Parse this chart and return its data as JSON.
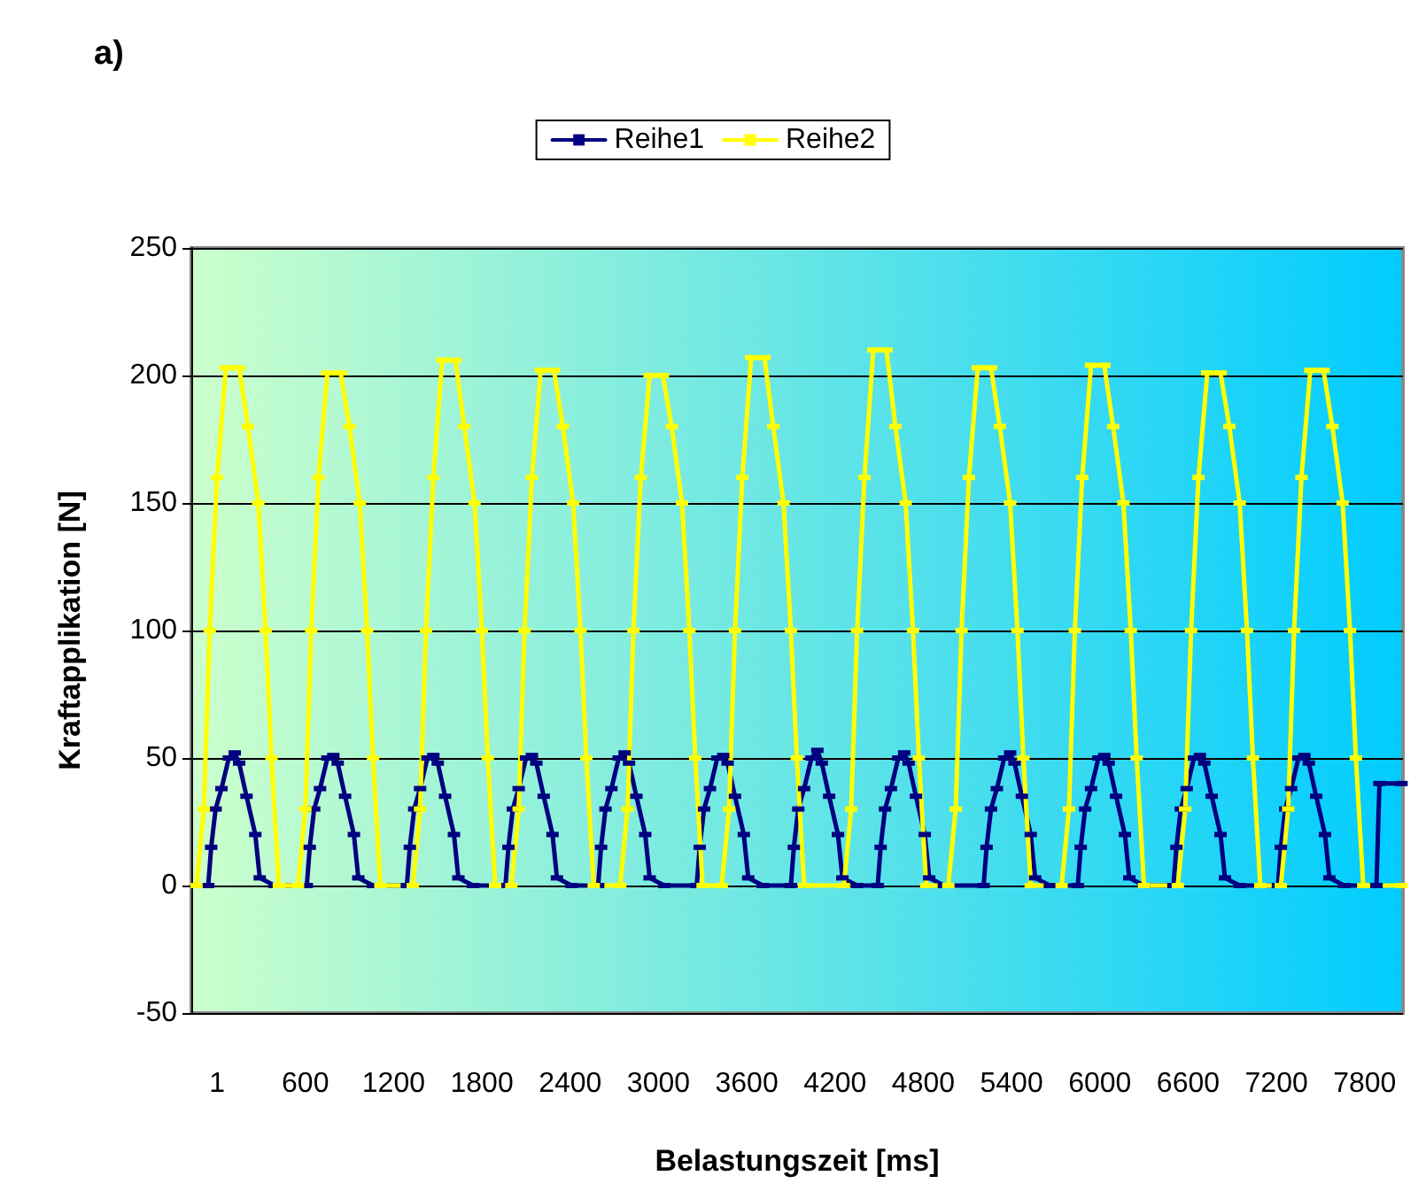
{
  "chart_data": {
    "type": "line",
    "title": "a)",
    "xlabel": "Belastungszeit [ms]",
    "ylabel": "Kraftapplikation [N]",
    "xlim": [
      -175,
      8060
    ],
    "xticks": [
      1,
      600,
      1200,
      1800,
      2400,
      3000,
      3600,
      4200,
      4800,
      5400,
      6000,
      6600,
      7200,
      7800
    ],
    "ylim": [
      -50,
      250
    ],
    "yticks": [
      -50,
      0,
      50,
      100,
      150,
      200,
      250
    ],
    "grid": "y",
    "legend": "top",
    "marker": "square",
    "line_style": "solid",
    "series": [
      {
        "name": "Reihe1",
        "color": "#000080",
        "x": [
          -60,
          -40,
          -10,
          30,
          80,
          120,
          150,
          200,
          260,
          290,
          390,
          610,
          630,
          660,
          700,
          750,
          790,
          820,
          870,
          930,
          960,
          1060,
          1290,
          1310,
          1340,
          1380,
          1430,
          1470,
          1500,
          1550,
          1610,
          1640,
          1740,
          1960,
          1980,
          2010,
          2050,
          2100,
          2140,
          2170,
          2220,
          2280,
          2310,
          2410,
          2590,
          2610,
          2640,
          2680,
          2730,
          2770,
          2800,
          2850,
          2910,
          2940,
          3040,
          3260,
          3280,
          3310,
          3350,
          3400,
          3440,
          3470,
          3520,
          3580,
          3610,
          3710,
          3900,
          3920,
          3950,
          3990,
          4040,
          4080,
          4110,
          4160,
          4220,
          4250,
          4350,
          4490,
          4510,
          4540,
          4580,
          4630,
          4670,
          4700,
          4750,
          4810,
          4840,
          4940,
          5210,
          5230,
          5260,
          5300,
          5350,
          5390,
          5420,
          5470,
          5530,
          5560,
          5660,
          5850,
          5870,
          5900,
          5940,
          5990,
          6030,
          6060,
          6110,
          6170,
          6200,
          6300,
          6500,
          6520,
          6550,
          6590,
          6640,
          6680,
          6710,
          6760,
          6820,
          6850,
          6950,
          7210,
          7230,
          7260,
          7300,
          7350,
          7390,
          7420,
          7470,
          7530,
          7560,
          7660,
          7880,
          7900,
          8050
        ],
        "values": [
          0,
          15,
          30,
          38,
          50,
          52,
          48,
          35,
          20,
          3,
          0,
          0,
          15,
          30,
          38,
          50,
          51,
          48,
          35,
          20,
          3,
          0,
          0,
          15,
          30,
          38,
          50,
          51,
          48,
          35,
          20,
          3,
          0,
          0,
          15,
          30,
          38,
          50,
          51,
          48,
          35,
          20,
          3,
          0,
          0,
          15,
          30,
          38,
          50,
          52,
          48,
          35,
          20,
          3,
          0,
          0,
          15,
          30,
          38,
          50,
          51,
          48,
          35,
          20,
          3,
          0,
          0,
          15,
          30,
          38,
          50,
          53,
          48,
          35,
          20,
          3,
          0,
          0,
          15,
          30,
          38,
          50,
          52,
          48,
          35,
          20,
          3,
          0,
          0,
          15,
          30,
          38,
          50,
          52,
          48,
          35,
          20,
          3,
          0,
          0,
          15,
          30,
          38,
          50,
          51,
          48,
          35,
          20,
          3,
          0,
          0,
          15,
          30,
          38,
          50,
          51,
          48,
          35,
          20,
          3,
          0,
          0,
          15,
          30,
          38,
          50,
          51,
          48,
          35,
          20,
          3,
          0,
          0,
          40,
          40
        ]
      },
      {
        "name": "Reihe2",
        "color": "#ffff00",
        "x": [
          -140,
          -90,
          -50,
          0,
          60,
          150,
          210,
          280,
          330,
          370,
          420,
          550,
          600,
          640,
          690,
          750,
          840,
          900,
          970,
          1020,
          1060,
          1110,
          1330,
          1380,
          1420,
          1470,
          1530,
          1620,
          1680,
          1750,
          1800,
          1840,
          1890,
          2000,
          2050,
          2090,
          2140,
          2200,
          2290,
          2350,
          2420,
          2470,
          2510,
          2560,
          2740,
          2790,
          2830,
          2880,
          2940,
          3030,
          3090,
          3160,
          3210,
          3250,
          3300,
          3430,
          3480,
          3520,
          3570,
          3630,
          3720,
          3780,
          3850,
          3900,
          3940,
          3990,
          4260,
          4310,
          4350,
          4400,
          4460,
          4550,
          4610,
          4680,
          4730,
          4770,
          4820,
          4970,
          5020,
          5060,
          5110,
          5170,
          5260,
          5320,
          5390,
          5440,
          5480,
          5530,
          5740,
          5790,
          5830,
          5880,
          5940,
          6030,
          6090,
          6160,
          6210,
          6250,
          6300,
          6530,
          6580,
          6620,
          6670,
          6730,
          6820,
          6880,
          6950,
          7000,
          7040,
          7090,
          7230,
          7280,
          7320,
          7370,
          7430,
          7520,
          7580,
          7650,
          7700,
          7740,
          7790,
          8050
        ],
        "values": [
          0,
          30,
          100,
          160,
          203,
          203,
          180,
          150,
          100,
          50,
          0,
          0,
          30,
          100,
          160,
          201,
          201,
          180,
          150,
          100,
          50,
          0,
          0,
          30,
          100,
          160,
          206,
          206,
          180,
          150,
          100,
          50,
          0,
          0,
          30,
          100,
          160,
          202,
          202,
          180,
          150,
          100,
          50,
          0,
          0,
          30,
          100,
          160,
          200,
          200,
          180,
          150,
          100,
          50,
          0,
          0,
          30,
          100,
          160,
          207,
          207,
          180,
          150,
          100,
          50,
          0,
          0,
          30,
          100,
          160,
          210,
          210,
          180,
          150,
          100,
          50,
          0,
          0,
          30,
          100,
          160,
          203,
          203,
          180,
          150,
          100,
          50,
          0,
          0,
          30,
          100,
          160,
          204,
          204,
          180,
          150,
          100,
          50,
          0,
          0,
          30,
          100,
          160,
          201,
          201,
          180,
          150,
          100,
          50,
          0,
          0,
          30,
          100,
          160,
          202,
          202,
          180,
          150,
          100,
          50,
          0,
          0
        ]
      }
    ]
  }
}
